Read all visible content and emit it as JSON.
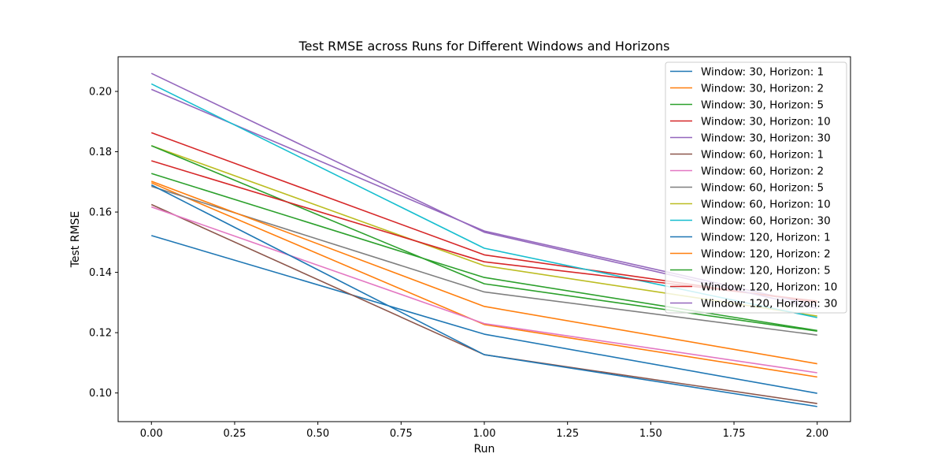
{
  "chart_data": {
    "type": "line",
    "title": "Test RMSE across Runs for Different Windows and Horizons",
    "xlabel": "Run",
    "ylabel": "Test RMSE",
    "x": [
      0,
      1,
      2
    ],
    "xlim": [
      -0.1,
      2.1
    ],
    "ylim": [
      0.0905,
      0.2115
    ],
    "xticks": [
      0.0,
      0.25,
      0.5,
      0.75,
      1.0,
      1.25,
      1.5,
      1.75,
      2.0
    ],
    "xtick_labels": [
      "0.00",
      "0.25",
      "0.50",
      "0.75",
      "1.00",
      "1.25",
      "1.50",
      "1.75",
      "2.00"
    ],
    "yticks": [
      0.1,
      0.12,
      0.14,
      0.16,
      0.18,
      0.2
    ],
    "ytick_labels": [
      "0.10",
      "0.12",
      "0.14",
      "0.16",
      "0.18",
      "0.20"
    ],
    "grid": false,
    "legend_position": "top-right",
    "series": [
      {
        "name": "Window: 30, Horizon: 1",
        "color": "#1f77b4",
        "values": [
          0.1522,
          0.1195,
          0.0999
        ]
      },
      {
        "name": "Window: 30, Horizon: 2",
        "color": "#ff7f0e",
        "values": [
          0.1697,
          0.1227,
          0.1053
        ]
      },
      {
        "name": "Window: 30, Horizon: 5",
        "color": "#2ca02c",
        "values": [
          0.1728,
          0.1383,
          0.1207
        ]
      },
      {
        "name": "Window: 30, Horizon: 10",
        "color": "#d62728",
        "values": [
          0.1863,
          0.1458,
          0.13
        ]
      },
      {
        "name": "Window: 30, Horizon: 30",
        "color": "#9467bd",
        "values": [
          0.2007,
          0.1537,
          0.129
        ]
      },
      {
        "name": "Window: 60, Horizon: 1",
        "color": "#8c564b",
        "values": [
          0.1625,
          0.1127,
          0.0965
        ]
      },
      {
        "name": "Window: 60, Horizon: 2",
        "color": "#e377c2",
        "values": [
          0.1617,
          0.123,
          0.1067
        ]
      },
      {
        "name": "Window: 60, Horizon: 5",
        "color": "#7f7f7f",
        "values": [
          0.1685,
          0.1335,
          0.1192
        ]
      },
      {
        "name": "Window: 60, Horizon: 10",
        "color": "#bcbd22",
        "values": [
          0.182,
          0.1422,
          0.1255
        ]
      },
      {
        "name": "Window: 60, Horizon: 30",
        "color": "#17becf",
        "values": [
          0.2025,
          0.148,
          0.125
        ]
      },
      {
        "name": "Window: 120, Horizon: 1",
        "color": "#1f77b4",
        "values": [
          0.169,
          0.1127,
          0.0955
        ]
      },
      {
        "name": "Window: 120, Horizon: 2",
        "color": "#ff7f0e",
        "values": [
          0.1702,
          0.1287,
          0.1097
        ]
      },
      {
        "name": "Window: 120, Horizon: 5",
        "color": "#2ca02c",
        "values": [
          0.182,
          0.1362,
          0.1205
        ]
      },
      {
        "name": "Window: 120, Horizon: 10",
        "color": "#d62728",
        "values": [
          0.177,
          0.1435,
          0.1305
        ]
      },
      {
        "name": "Window: 120, Horizon: 30",
        "color": "#9467bd",
        "values": [
          0.206,
          0.1533,
          0.128
        ]
      }
    ]
  }
}
